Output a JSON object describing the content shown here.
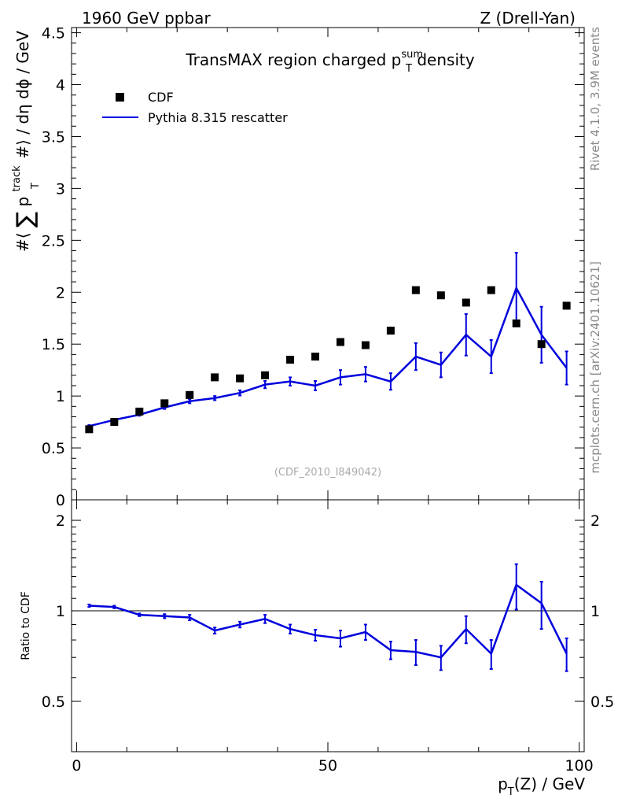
{
  "header": {
    "left_label": "1960 GeV ppbar",
    "right_label": "Z (Drell-Yan)"
  },
  "side_labels": {
    "rivet": "Rivet 4.1.0,  3.9M events",
    "mcplots": "mcplots.cern.ch [arXiv:2401.10621]"
  },
  "chart_data": [
    {
      "type": "scatter+line",
      "title_main": "TransMAX region charged p",
      "title_sup": "sum",
      "title_sub": "T",
      "title_tail": " density",
      "ylabel": "#⟨ ∑ p_T^track #⟩ / dη dφ / GeV",
      "ylabel_parts": {
        "pre": "#⟨",
        "sum": "∑",
        "p": "p",
        "sup": "track",
        "sub": "T",
        "post": "#⟩ / dη dϕ / GeV"
      },
      "xlim": [
        -1,
        101
      ],
      "ylim": [
        0,
        4.55
      ],
      "yticks": [
        0,
        0.5,
        1,
        1.5,
        2,
        2.5,
        3,
        3.5,
        4,
        4.5
      ],
      "ytick_labels": [
        "0",
        "0.5",
        "1",
        "1.5",
        "2",
        "2.5",
        "3",
        "3.5",
        "4",
        "4.5"
      ],
      "watermark": "(CDF_2010_I849042)",
      "legend": [
        {
          "label": "CDF",
          "marker": "square",
          "color": "#000000"
        },
        {
          "label": "Pythia 8.315 rescatter",
          "marker": "line",
          "color": "#0000dd"
        }
      ],
      "series": [
        {
          "name": "CDF",
          "x": [
            2.5,
            7.5,
            12.5,
            17.5,
            22.5,
            27.5,
            32.5,
            37.5,
            42.5,
            47.5,
            52.5,
            57.5,
            62.5,
            67.5,
            72.5,
            77.5,
            82.5,
            87.5,
            92.5,
            97.5
          ],
          "y": [
            0.68,
            0.75,
            0.85,
            0.93,
            1.01,
            1.18,
            1.17,
            1.2,
            1.35,
            1.38,
            1.52,
            1.49,
            1.63,
            2.02,
            1.97,
            1.9,
            2.02,
            1.7,
            1.5,
            1.87
          ]
        },
        {
          "name": "Pythia 8.315 rescatter",
          "color": "#0000dd",
          "x": [
            2.5,
            7.5,
            12.5,
            17.5,
            22.5,
            27.5,
            32.5,
            37.5,
            42.5,
            47.5,
            52.5,
            57.5,
            62.5,
            67.5,
            72.5,
            77.5,
            82.5,
            87.5,
            92.5,
            97.5
          ],
          "y": [
            0.71,
            0.77,
            0.82,
            0.89,
            0.95,
            0.98,
            1.03,
            1.11,
            1.14,
            1.1,
            1.18,
            1.21,
            1.14,
            1.38,
            1.3,
            1.59,
            1.38,
            2.04,
            1.59,
            1.27
          ],
          "err": [
            0.01,
            0.01,
            0.01,
            0.015,
            0.02,
            0.02,
            0.025,
            0.035,
            0.04,
            0.045,
            0.07,
            0.07,
            0.08,
            0.13,
            0.12,
            0.2,
            0.16,
            0.34,
            0.27,
            0.16
          ]
        }
      ]
    },
    {
      "type": "line",
      "ylabel": "Ratio to CDF",
      "xlabel_main": "p",
      "xlabel_sub": "T",
      "xlabel_tail": "(Z) / GeV",
      "xlim": [
        -1,
        101
      ],
      "xticks": [
        0,
        50,
        100
      ],
      "xtick_labels": [
        "0",
        "50",
        "100"
      ],
      "ylim": [
        0.34,
        2.34
      ],
      "yticks": [
        0.5,
        1,
        2
      ],
      "ytick_labels": [
        "0.5",
        "1",
        "2"
      ],
      "reference_line": 1,
      "series": [
        {
          "name": "Pythia 8.315 rescatter / CDF",
          "color": "#0000dd",
          "x": [
            2.5,
            7.5,
            12.5,
            17.5,
            22.5,
            27.5,
            32.5,
            37.5,
            42.5,
            47.5,
            52.5,
            57.5,
            62.5,
            67.5,
            72.5,
            77.5,
            82.5,
            87.5,
            92.5,
            97.5
          ],
          "y": [
            1.04,
            1.03,
            0.97,
            0.96,
            0.95,
            0.86,
            0.9,
            0.94,
            0.87,
            0.83,
            0.81,
            0.85,
            0.74,
            0.73,
            0.7,
            0.87,
            0.72,
            1.22,
            1.06,
            0.72
          ],
          "err": [
            0.01,
            0.01,
            0.01,
            0.015,
            0.02,
            0.02,
            0.02,
            0.03,
            0.03,
            0.035,
            0.05,
            0.05,
            0.05,
            0.07,
            0.065,
            0.09,
            0.08,
            0.21,
            0.19,
            0.09
          ]
        }
      ]
    }
  ]
}
